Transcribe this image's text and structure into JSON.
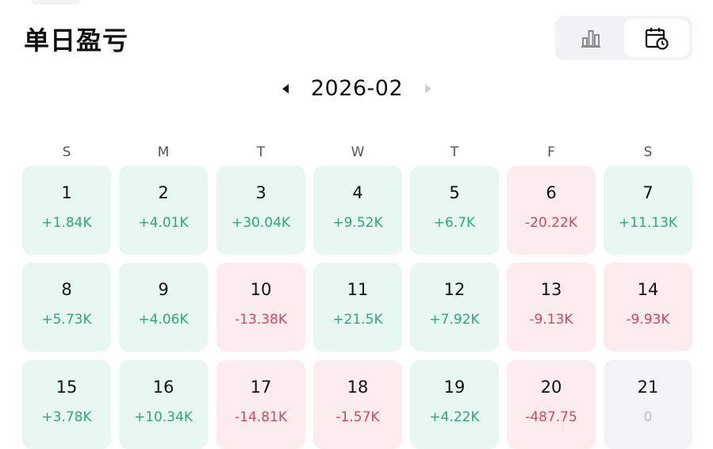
{
  "header": {
    "title": "单日盈亏"
  },
  "view_toggle": {
    "chart_icon": "bar-chart-icon",
    "calendar_icon": "calendar-clock-icon",
    "active": "calendar"
  },
  "month_nav": {
    "month": "2026-02"
  },
  "weekdays": [
    "S",
    "M",
    "T",
    "W",
    "T",
    "F",
    "S"
  ],
  "days": [
    {
      "day": "1",
      "pnl": "+1.84K",
      "status": "profit"
    },
    {
      "day": "2",
      "pnl": "+4.01K",
      "status": "profit"
    },
    {
      "day": "3",
      "pnl": "+30.04K",
      "status": "profit"
    },
    {
      "day": "4",
      "pnl": "+9.52K",
      "status": "profit"
    },
    {
      "day": "5",
      "pnl": "+6.7K",
      "status": "profit"
    },
    {
      "day": "6",
      "pnl": "-20.22K",
      "status": "loss"
    },
    {
      "day": "7",
      "pnl": "+11.13K",
      "status": "profit"
    },
    {
      "day": "8",
      "pnl": "+5.73K",
      "status": "profit"
    },
    {
      "day": "9",
      "pnl": "+4.06K",
      "status": "profit"
    },
    {
      "day": "10",
      "pnl": "-13.38K",
      "status": "loss"
    },
    {
      "day": "11",
      "pnl": "+21.5K",
      "status": "profit"
    },
    {
      "day": "12",
      "pnl": "+7.92K",
      "status": "profit"
    },
    {
      "day": "13",
      "pnl": "-9.13K",
      "status": "loss"
    },
    {
      "day": "14",
      "pnl": "-9.93K",
      "status": "loss"
    },
    {
      "day": "15",
      "pnl": "+3.78K",
      "status": "profit"
    },
    {
      "day": "16",
      "pnl": "+10.34K",
      "status": "profit"
    },
    {
      "day": "17",
      "pnl": "-14.81K",
      "status": "loss"
    },
    {
      "day": "18",
      "pnl": "-1.57K",
      "status": "loss"
    },
    {
      "day": "19",
      "pnl": "+4.22K",
      "status": "profit"
    },
    {
      "day": "20",
      "pnl": "-487.75",
      "status": "loss"
    },
    {
      "day": "21",
      "pnl": "0",
      "status": "neutral"
    }
  ],
  "colors": {
    "profit_bg": "#e8f7f0",
    "profit_text": "#2fa77a",
    "loss_bg": "#fdecee",
    "loss_text": "#d9455d",
    "neutral_bg": "#f2f3f5"
  }
}
